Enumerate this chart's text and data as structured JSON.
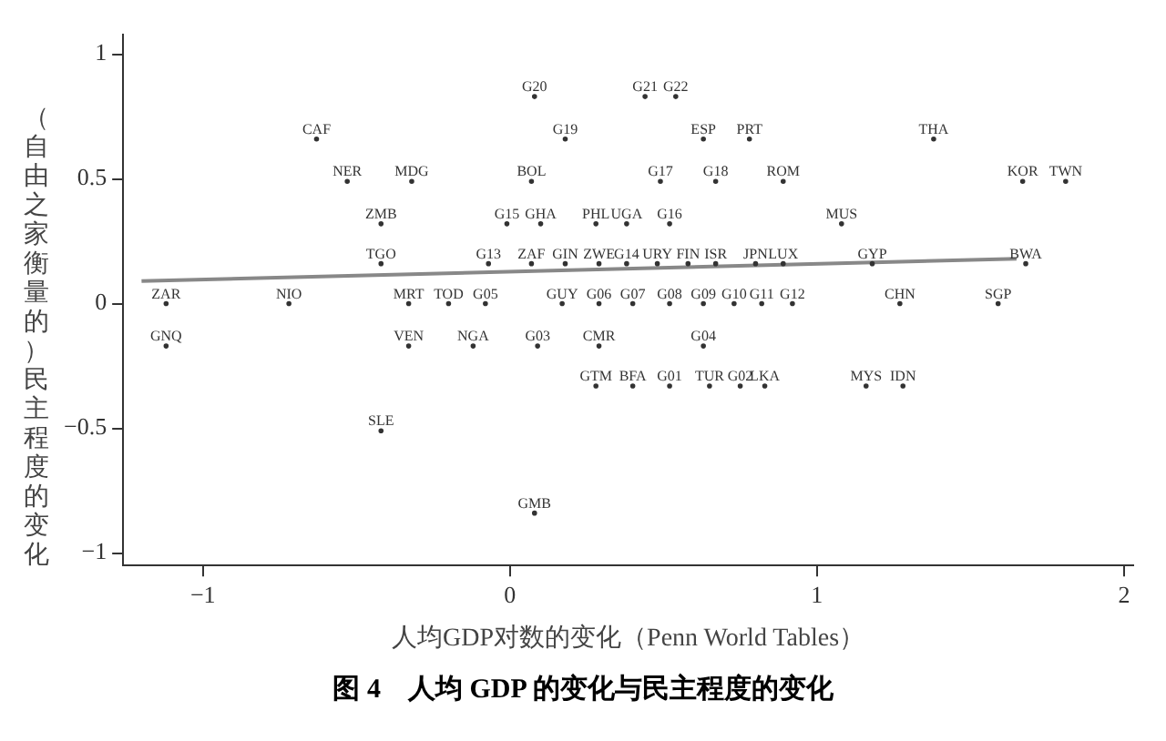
{
  "chart_data": {
    "type": "scatter",
    "title": "图 4　人均 GDP 的变化与民主程度的变化",
    "xlabel": "人均GDP对数的变化（Penn World Tables）",
    "ylabel": "（自由之家衡量的）民主程度的变化",
    "xlim": [
      -1.26,
      2.03
    ],
    "xticks": [
      -1,
      0,
      1,
      2
    ],
    "ylim": [
      -1.05,
      1.08
    ],
    "yticks": [
      -1,
      -0.5,
      0,
      0.5,
      1
    ],
    "grid": false,
    "legend": false,
    "series": [
      {
        "type": "scatter",
        "color": "#333333",
        "x": [
          0.08,
          0.44,
          0.54,
          -0.63,
          0.18,
          0.63,
          0.78,
          1.38,
          -0.53,
          -0.32,
          0.07,
          0.49,
          0.67,
          0.89,
          1.67,
          1.81,
          -0.42,
          -0.01,
          0.1,
          0.28,
          0.38,
          0.52,
          1.08,
          -0.42,
          -0.07,
          0.07,
          0.18,
          0.29,
          0.38,
          0.48,
          0.58,
          0.67,
          0.8,
          0.89,
          1.18,
          1.68,
          -1.12,
          -0.72,
          -0.33,
          -0.2,
          -0.08,
          0.17,
          0.29,
          0.4,
          0.52,
          0.63,
          0.73,
          0.82,
          0.92,
          1.27,
          1.59,
          -1.12,
          -0.33,
          -0.12,
          0.09,
          0.29,
          0.63,
          0.28,
          0.4,
          0.52,
          0.65,
          0.75,
          0.83,
          1.16,
          1.28,
          -0.42,
          0.08
        ],
        "values": [
          0.83,
          0.83,
          0.83,
          0.66,
          0.66,
          0.66,
          0.66,
          0.66,
          0.49,
          0.49,
          0.49,
          0.49,
          0.49,
          0.49,
          0.49,
          0.49,
          0.32,
          0.32,
          0.32,
          0.32,
          0.32,
          0.32,
          0.32,
          0.16,
          0.16,
          0.16,
          0.16,
          0.16,
          0.16,
          0.16,
          0.16,
          0.16,
          0.16,
          0.16,
          0.16,
          0.16,
          0,
          0,
          0,
          0,
          0,
          0,
          0,
          0,
          0,
          0,
          0,
          0,
          0,
          0,
          0,
          -0.17,
          -0.17,
          -0.17,
          -0.17,
          -0.17,
          -0.17,
          -0.33,
          -0.33,
          -0.33,
          -0.33,
          -0.33,
          -0.33,
          -0.33,
          -0.33,
          -0.51,
          -0.84
        ],
        "value_labels": [
          "G20",
          "G21",
          "G22",
          "CAF",
          "G19",
          "ESP",
          "PRT",
          "THA",
          "NER",
          "MDG",
          "BOL",
          "G17",
          "G18",
          "ROM",
          "KOR",
          "TWN",
          "ZMB",
          "G15",
          "GHA",
          "PHL",
          "UGA",
          "G16",
          "MUS",
          "TGO",
          "G13",
          "ZAF",
          "GIN",
          "ZWE",
          "G14",
          "URY",
          "FIN",
          "ISR",
          "JPN",
          "LUX",
          "GYP",
          "BWA",
          "ZAR",
          "NIO",
          "MRT",
          "TOD",
          "G05",
          "GUY",
          "G06",
          "G07",
          "G08",
          "G09",
          "G10",
          "G11",
          "G12",
          "CHN",
          "SGP",
          "GNQ",
          "VEN",
          "NGA",
          "G03",
          "CMR",
          "G04",
          "GTM",
          "BFA",
          "G01",
          "TUR",
          "G02",
          "LKA",
          "MYS",
          "IDN",
          "SLE",
          "GMB"
        ]
      },
      {
        "type": "line",
        "color": "#888888",
        "x": [
          -1.2,
          1.65
        ],
        "values": [
          0.09,
          0.18
        ]
      }
    ]
  }
}
